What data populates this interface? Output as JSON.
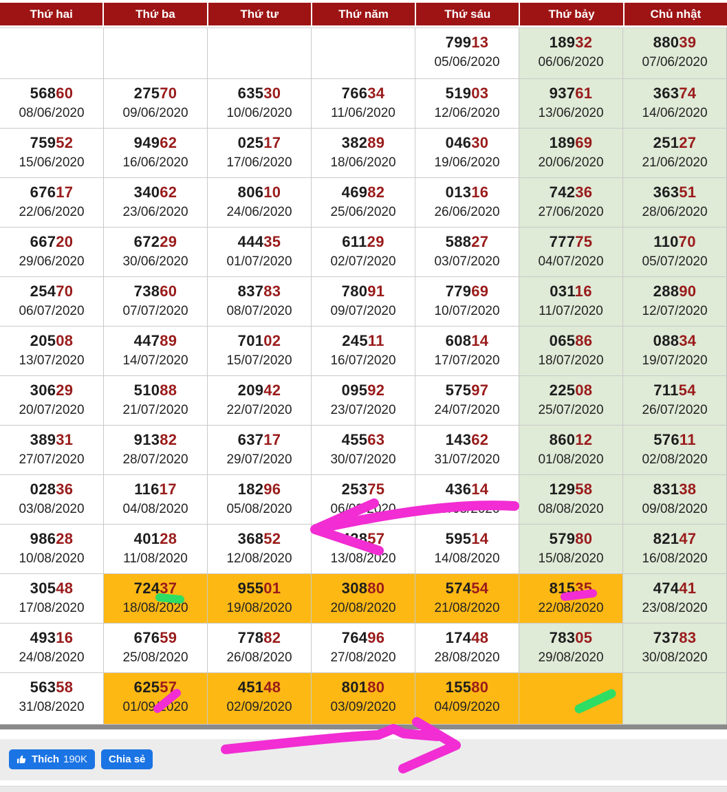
{
  "header": {
    "days": [
      "Thứ hai",
      "Thứ ba",
      "Thứ tư",
      "Thứ năm",
      "Thứ sáu",
      "Thứ bảy",
      "Chủ nhật"
    ]
  },
  "rows": [
    {
      "cells": [
        [
          "",
          ""
        ],
        [
          "",
          ""
        ],
        [
          "",
          ""
        ],
        [
          "",
          ""
        ],
        [
          "79913",
          "05/06/2020"
        ],
        [
          "18932",
          "06/06/2020",
          "w"
        ],
        [
          "88039",
          "07/06/2020",
          "w"
        ]
      ]
    },
    {
      "cells": [
        [
          "56860",
          "08/06/2020"
        ],
        [
          "27570",
          "09/06/2020"
        ],
        [
          "63530",
          "10/06/2020"
        ],
        [
          "76634",
          "11/06/2020"
        ],
        [
          "51903",
          "12/06/2020"
        ],
        [
          "93761",
          "13/06/2020",
          "w"
        ],
        [
          "36374",
          "14/06/2020",
          "w"
        ]
      ]
    },
    {
      "cells": [
        [
          "75952",
          "15/06/2020"
        ],
        [
          "94962",
          "16/06/2020"
        ],
        [
          "02517",
          "17/06/2020"
        ],
        [
          "38289",
          "18/06/2020"
        ],
        [
          "04630",
          "19/06/2020"
        ],
        [
          "18969",
          "20/06/2020",
          "w"
        ],
        [
          "25127",
          "21/06/2020",
          "w"
        ]
      ]
    },
    {
      "cells": [
        [
          "67617",
          "22/06/2020"
        ],
        [
          "34062",
          "23/06/2020"
        ],
        [
          "80610",
          "24/06/2020"
        ],
        [
          "46982",
          "25/06/2020"
        ],
        [
          "01316",
          "26/06/2020"
        ],
        [
          "74236",
          "27/06/2020",
          "w"
        ],
        [
          "36351",
          "28/06/2020",
          "w"
        ]
      ]
    },
    {
      "cells": [
        [
          "66720",
          "29/06/2020"
        ],
        [
          "67229",
          "30/06/2020"
        ],
        [
          "44435",
          "01/07/2020"
        ],
        [
          "61129",
          "02/07/2020"
        ],
        [
          "58827",
          "03/07/2020"
        ],
        [
          "77775",
          "04/07/2020",
          "w"
        ],
        [
          "11070",
          "05/07/2020",
          "w"
        ]
      ]
    },
    {
      "cells": [
        [
          "25470",
          "06/07/2020"
        ],
        [
          "73860",
          "07/07/2020"
        ],
        [
          "83783",
          "08/07/2020"
        ],
        [
          "78091",
          "09/07/2020"
        ],
        [
          "77969",
          "10/07/2020"
        ],
        [
          "03116",
          "11/07/2020",
          "w"
        ],
        [
          "28890",
          "12/07/2020",
          "w"
        ]
      ]
    },
    {
      "cells": [
        [
          "20508",
          "13/07/2020"
        ],
        [
          "44789",
          "14/07/2020"
        ],
        [
          "70102",
          "15/07/2020"
        ],
        [
          "24511",
          "16/07/2020"
        ],
        [
          "60814",
          "17/07/2020"
        ],
        [
          "06586",
          "18/07/2020",
          "w"
        ],
        [
          "08834",
          "19/07/2020",
          "w"
        ]
      ]
    },
    {
      "cells": [
        [
          "30629",
          "20/07/2020"
        ],
        [
          "51088",
          "21/07/2020"
        ],
        [
          "20942",
          "22/07/2020"
        ],
        [
          "09592",
          "23/07/2020"
        ],
        [
          "57597",
          "24/07/2020"
        ],
        [
          "22508",
          "25/07/2020",
          "w"
        ],
        [
          "71154",
          "26/07/2020",
          "w"
        ]
      ]
    },
    {
      "cells": [
        [
          "38931",
          "27/07/2020"
        ],
        [
          "91382",
          "28/07/2020"
        ],
        [
          "63717",
          "29/07/2020"
        ],
        [
          "45563",
          "30/07/2020"
        ],
        [
          "14362",
          "31/07/2020"
        ],
        [
          "86012",
          "01/08/2020",
          "w"
        ],
        [
          "57611",
          "02/08/2020",
          "w"
        ]
      ]
    },
    {
      "cells": [
        [
          "02836",
          "03/08/2020"
        ],
        [
          "11617",
          "04/08/2020"
        ],
        [
          "18296",
          "05/08/2020"
        ],
        [
          "25375",
          "06/08/2020"
        ],
        [
          "43614",
          "07/08/2020"
        ],
        [
          "12958",
          "08/08/2020",
          "w"
        ],
        [
          "83138",
          "09/08/2020",
          "w"
        ]
      ]
    },
    {
      "cells": [
        [
          "98628",
          "10/08/2020"
        ],
        [
          "40128",
          "11/08/2020"
        ],
        [
          "36852",
          "12/08/2020"
        ],
        [
          "42857",
          "13/08/2020"
        ],
        [
          "59514",
          "14/08/2020"
        ],
        [
          "57980",
          "15/08/2020",
          "w"
        ],
        [
          "82147",
          "16/08/2020",
          "w"
        ]
      ]
    },
    {
      "cells": [
        [
          "30548",
          "17/08/2020"
        ],
        [
          "72437",
          "18/08/2020",
          "h"
        ],
        [
          "95501",
          "19/08/2020",
          "h"
        ],
        [
          "30880",
          "20/08/2020",
          "h"
        ],
        [
          "57454",
          "21/08/2020",
          "h"
        ],
        [
          "81535",
          "22/08/2020",
          "h"
        ],
        [
          "47441",
          "23/08/2020",
          "w"
        ]
      ]
    },
    {
      "cells": [
        [
          "49316",
          "24/08/2020"
        ],
        [
          "67659",
          "25/08/2020"
        ],
        [
          "77882",
          "26/08/2020"
        ],
        [
          "76496",
          "27/08/2020"
        ],
        [
          "17448",
          "28/08/2020"
        ],
        [
          "78305",
          "29/08/2020",
          "w"
        ],
        [
          "73783",
          "30/08/2020",
          "w"
        ]
      ]
    },
    {
      "cells": [
        [
          "56358",
          "31/08/2020"
        ],
        [
          "62557",
          "01/09/2020",
          "h"
        ],
        [
          "45148",
          "02/09/2020",
          "h"
        ],
        [
          "80180",
          "03/09/2020",
          "h"
        ],
        [
          "15580",
          "04/09/2020",
          "h"
        ],
        [
          "",
          "",
          "h"
        ],
        [
          "",
          "",
          "w"
        ]
      ]
    }
  ],
  "footer": {
    "like": "Thích",
    "like_count": "190K",
    "share": "Chia sẻ"
  },
  "colors": {
    "header_bg": "#9e1414",
    "digit_dark": "#1d1d1d",
    "digit_red": "#9a1b1b",
    "weekend_bg": "#dfead7",
    "highlight_bg": "#fdb814",
    "marker_pink": "#f12dd3",
    "marker_green": "#2edd63",
    "facebook_blue": "#1b74e4"
  },
  "annotations": [
    {
      "name": "pink-arrow-left",
      "color_key": "marker_pink",
      "desc": "hand-drawn arrow pointing left at 36852 / 42857 row"
    },
    {
      "name": "pink-underline-81535",
      "color_key": "marker_pink",
      "desc": "pink stroke under 35 of 81535 (22/08/2020)"
    },
    {
      "name": "pink-slash-62557",
      "color_key": "marker_pink",
      "desc": "pink stroke across 01/09/2020 date"
    },
    {
      "name": "green-underline-72437",
      "color_key": "marker_green",
      "desc": "green stroke under 37 of 72437 (18/08/2020)"
    },
    {
      "name": "green-slash-saturday",
      "color_key": "marker_green",
      "desc": "green stroke in empty Saturday cell of last row"
    },
    {
      "name": "pink-arrow-right",
      "color_key": "marker_pink",
      "desc": "hand-drawn arrow pointing right above like buttons"
    }
  ]
}
